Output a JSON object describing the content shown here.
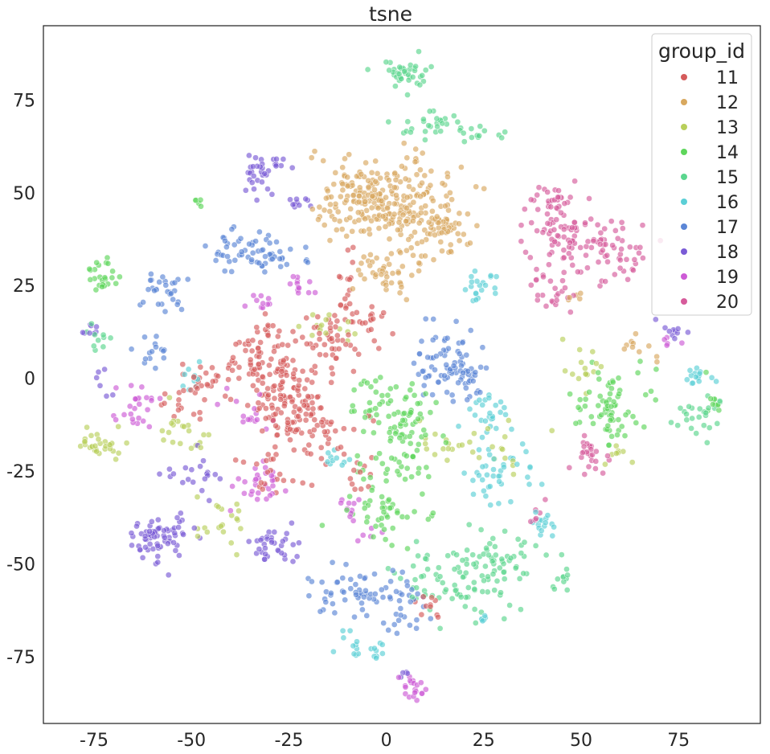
{
  "chart_data": {
    "type": "scatter",
    "title": "tsne",
    "xlabel": "",
    "ylabel": "",
    "xlim": [
      -88,
      96
    ],
    "ylim": [
      -93,
      95
    ],
    "xticks": [
      -75,
      -50,
      -25,
      0,
      25,
      50,
      75
    ],
    "yticks": [
      75,
      50,
      25,
      0,
      -25,
      -50,
      -75
    ],
    "grid": false,
    "legend": {
      "title": "group_id",
      "placement": "top-right"
    },
    "series": [
      {
        "name": "11",
        "color": "#d55b5b",
        "clusters": [
          {
            "cx": -30,
            "cy": 5,
            "sx": 6,
            "sy": 6,
            "n": 90
          },
          {
            "cx": -25,
            "cy": -5,
            "sx": 5,
            "sy": 5,
            "n": 80
          },
          {
            "cx": -20,
            "cy": -15,
            "sx": 6,
            "sy": 5,
            "n": 60
          },
          {
            "cx": -13,
            "cy": 10,
            "sx": 4,
            "sy": 4,
            "n": 40
          },
          {
            "cx": -10,
            "cy": 25,
            "sx": 2,
            "sy": 6,
            "n": 20
          },
          {
            "cx": -45,
            "cy": 0,
            "sx": 4,
            "sy": 3,
            "n": 25
          },
          {
            "cx": -52,
            "cy": -8,
            "sx": 3,
            "sy": 3,
            "n": 15
          },
          {
            "cx": -30,
            "cy": -25,
            "sx": 4,
            "sy": 4,
            "n": 20
          },
          {
            "cx": -8,
            "cy": -27,
            "sx": 2,
            "sy": 2,
            "n": 10
          },
          {
            "cx": -5,
            "cy": 15,
            "sx": 3,
            "sy": 3,
            "n": 15
          },
          {
            "cx": 10,
            "cy": -62,
            "sx": 2,
            "sy": 2,
            "n": 10
          }
        ]
      },
      {
        "name": "12",
        "color": "#d8a85f",
        "clusters": [
          {
            "cx": -7,
            "cy": 50,
            "sx": 5,
            "sy": 5,
            "n": 90
          },
          {
            "cx": 0,
            "cy": 45,
            "sx": 5,
            "sy": 6,
            "n": 90
          },
          {
            "cx": 10,
            "cy": 47,
            "sx": 6,
            "sy": 6,
            "n": 80
          },
          {
            "cx": 0,
            "cy": 28,
            "sx": 5,
            "sy": 3,
            "n": 40
          },
          {
            "cx": 15,
            "cy": 40,
            "sx": 4,
            "sy": 4,
            "n": 40
          },
          {
            "cx": -15,
            "cy": 45,
            "sx": 2,
            "sy": 3,
            "n": 15
          },
          {
            "cx": 63,
            "cy": 9,
            "sx": 3,
            "sy": 2,
            "n": 10
          },
          {
            "cx": 47,
            "cy": 22,
            "sx": 2,
            "sy": 2,
            "n": 5
          }
        ]
      },
      {
        "name": "13",
        "color": "#b8cf5b",
        "clusters": [
          {
            "cx": -73,
            "cy": -18,
            "sx": 4,
            "sy": 2,
            "n": 30
          },
          {
            "cx": -52,
            "cy": -14,
            "sx": 4,
            "sy": 3,
            "n": 20
          },
          {
            "cx": -42,
            "cy": -40,
            "sx": 4,
            "sy": 3,
            "n": 20
          },
          {
            "cx": -14,
            "cy": 14,
            "sx": 4,
            "sy": 2,
            "n": 15
          },
          {
            "cx": 50,
            "cy": 3,
            "sx": 3,
            "sy": 3,
            "n": 15
          },
          {
            "cx": 30,
            "cy": -20,
            "sx": 4,
            "sy": 4,
            "n": 15
          },
          {
            "cx": 15,
            "cy": -18,
            "sx": 5,
            "sy": 4,
            "n": 15
          },
          {
            "cx": 60,
            "cy": -20,
            "sx": 2,
            "sy": 2,
            "n": 8
          }
        ]
      },
      {
        "name": "14",
        "color": "#5ed65b",
        "clusters": [
          {
            "cx": 3,
            "cy": -10,
            "sx": 6,
            "sy": 5,
            "n": 80
          },
          {
            "cx": 0,
            "cy": -33,
            "sx": 5,
            "sy": 6,
            "n": 60
          },
          {
            "cx": 58,
            "cy": -8,
            "sx": 5,
            "sy": 6,
            "n": 70
          },
          {
            "cx": -73,
            "cy": 28,
            "sx": 2,
            "sy": 3,
            "n": 25
          },
          {
            "cx": 83,
            "cy": -5,
            "sx": 2,
            "sy": 3,
            "n": 10
          },
          {
            "cx": -48,
            "cy": 48,
            "sx": 1,
            "sy": 1,
            "n": 5
          },
          {
            "cx": 5,
            "cy": -22,
            "sx": 5,
            "sy": 4,
            "n": 15
          }
        ]
      },
      {
        "name": "15",
        "color": "#5bd68e",
        "clusters": [
          {
            "cx": 5,
            "cy": 82,
            "sx": 4,
            "sy": 2,
            "n": 40
          },
          {
            "cx": 13,
            "cy": 68,
            "sx": 5,
            "sy": 2,
            "n": 30
          },
          {
            "cx": 25,
            "cy": 66,
            "sx": 2,
            "sy": 1,
            "n": 10
          },
          {
            "cx": 20,
            "cy": -55,
            "sx": 8,
            "sy": 5,
            "n": 80
          },
          {
            "cx": 30,
            "cy": -48,
            "sx": 6,
            "sy": 4,
            "n": 40
          },
          {
            "cx": 80,
            "cy": -10,
            "sx": 3,
            "sy": 3,
            "n": 25
          },
          {
            "cx": -74,
            "cy": 12,
            "sx": 2,
            "sy": 2,
            "n": 10
          },
          {
            "cx": 45,
            "cy": -55,
            "sx": 2,
            "sy": 2,
            "n": 10
          }
        ]
      },
      {
        "name": "16",
        "color": "#5bcfd6",
        "clusters": [
          {
            "cx": 80,
            "cy": 0,
            "sx": 2,
            "sy": 1,
            "n": 15
          },
          {
            "cx": 40,
            "cy": -40,
            "sx": 2,
            "sy": 2,
            "n": 15
          },
          {
            "cx": 30,
            "cy": -25,
            "sx": 4,
            "sy": 4,
            "n": 40
          },
          {
            "cx": 25,
            "cy": -10,
            "sx": 3,
            "sy": 3,
            "n": 25
          },
          {
            "cx": 25,
            "cy": 25,
            "sx": 3,
            "sy": 2,
            "n": 20
          },
          {
            "cx": -7,
            "cy": -72,
            "sx": 3,
            "sy": 2,
            "n": 20
          },
          {
            "cx": -12,
            "cy": -22,
            "sx": 2,
            "sy": 1,
            "n": 10
          },
          {
            "cx": 25,
            "cy": -65,
            "sx": 1,
            "sy": 1,
            "n": 6
          },
          {
            "cx": -50,
            "cy": 0,
            "sx": 2,
            "sy": 2,
            "n": 10
          }
        ]
      },
      {
        "name": "17",
        "color": "#5b86d6",
        "clusters": [
          {
            "cx": -38,
            "cy": 35,
            "sx": 4,
            "sy": 3,
            "n": 40
          },
          {
            "cx": -28,
            "cy": 33,
            "sx": 4,
            "sy": 2,
            "n": 25
          },
          {
            "cx": -10,
            "cy": -57,
            "sx": 5,
            "sy": 4,
            "n": 50
          },
          {
            "cx": 5,
            "cy": -62,
            "sx": 4,
            "sy": 4,
            "n": 30
          },
          {
            "cx": 15,
            "cy": 5,
            "sx": 4,
            "sy": 5,
            "n": 60
          },
          {
            "cx": 20,
            "cy": 0,
            "sx": 3,
            "sy": 3,
            "n": 30
          },
          {
            "cx": -55,
            "cy": 22,
            "sx": 3,
            "sy": 3,
            "n": 20
          },
          {
            "cx": -60,
            "cy": 7,
            "sx": 3,
            "sy": 2,
            "n": 15
          },
          {
            "cx": -60,
            "cy": 25,
            "sx": 2,
            "sy": 2,
            "n": 10
          }
        ]
      },
      {
        "name": "18",
        "color": "#7a5bd6",
        "clusters": [
          {
            "cx": -58,
            "cy": -43,
            "sx": 4,
            "sy": 3,
            "n": 70
          },
          {
            "cx": -33,
            "cy": 55,
            "sx": 2,
            "sy": 3,
            "n": 25
          },
          {
            "cx": -28,
            "cy": 58,
            "sx": 2,
            "sy": 1,
            "n": 10
          },
          {
            "cx": -28,
            "cy": -45,
            "sx": 4,
            "sy": 3,
            "n": 35
          },
          {
            "cx": -50,
            "cy": -25,
            "sx": 4,
            "sy": 3,
            "n": 20
          },
          {
            "cx": -22,
            "cy": 47,
            "sx": 2,
            "sy": 1,
            "n": 10
          },
          {
            "cx": -75,
            "cy": 13,
            "sx": 2,
            "sy": 1,
            "n": 8
          },
          {
            "cx": -73,
            "cy": -1,
            "sx": 1,
            "sy": 2,
            "n": 6
          },
          {
            "cx": 73,
            "cy": 13,
            "sx": 2,
            "sy": 1,
            "n": 10
          },
          {
            "cx": 5,
            "cy": -80,
            "sx": 1,
            "sy": 1,
            "n": 4
          }
        ]
      },
      {
        "name": "19",
        "color": "#cd5bd6",
        "clusters": [
          {
            "cx": 7,
            "cy": -83,
            "sx": 2,
            "sy": 2,
            "n": 20
          },
          {
            "cx": -65,
            "cy": -7,
            "sx": 3,
            "sy": 3,
            "n": 25
          },
          {
            "cx": -33,
            "cy": -28,
            "sx": 4,
            "sy": 3,
            "n": 30
          },
          {
            "cx": -22,
            "cy": 24,
            "sx": 2,
            "sy": 2,
            "n": 12
          },
          {
            "cx": -33,
            "cy": 20,
            "sx": 2,
            "sy": 1,
            "n": 10
          },
          {
            "cx": -10,
            "cy": -35,
            "sx": 2,
            "sy": 2,
            "n": 10
          },
          {
            "cx": -35,
            "cy": -10,
            "sx": 4,
            "sy": 3,
            "n": 15
          },
          {
            "cx": -5,
            "cy": -43,
            "sx": 2,
            "sy": 1,
            "n": 5
          },
          {
            "cx": 72,
            "cy": 10,
            "sx": 2,
            "sy": 1,
            "n": 5
          }
        ]
      },
      {
        "name": "20",
        "color": "#d65b9b",
        "clusters": [
          {
            "cx": 45,
            "cy": 38,
            "sx": 5,
            "sy": 5,
            "n": 70
          },
          {
            "cx": 58,
            "cy": 35,
            "sx": 5,
            "sy": 4,
            "n": 50
          },
          {
            "cx": 43,
            "cy": 48,
            "sx": 3,
            "sy": 3,
            "n": 25
          },
          {
            "cx": 43,
            "cy": 23,
            "sx": 3,
            "sy": 3,
            "n": 25
          },
          {
            "cx": 51,
            "cy": -18,
            "sx": 2,
            "sy": 2,
            "n": 15
          },
          {
            "cx": 55,
            "cy": -23,
            "sx": 2,
            "sy": 2,
            "n": 10
          },
          {
            "cx": 40,
            "cy": -35,
            "sx": 2,
            "sy": 2,
            "n": 6
          }
        ]
      }
    ]
  }
}
